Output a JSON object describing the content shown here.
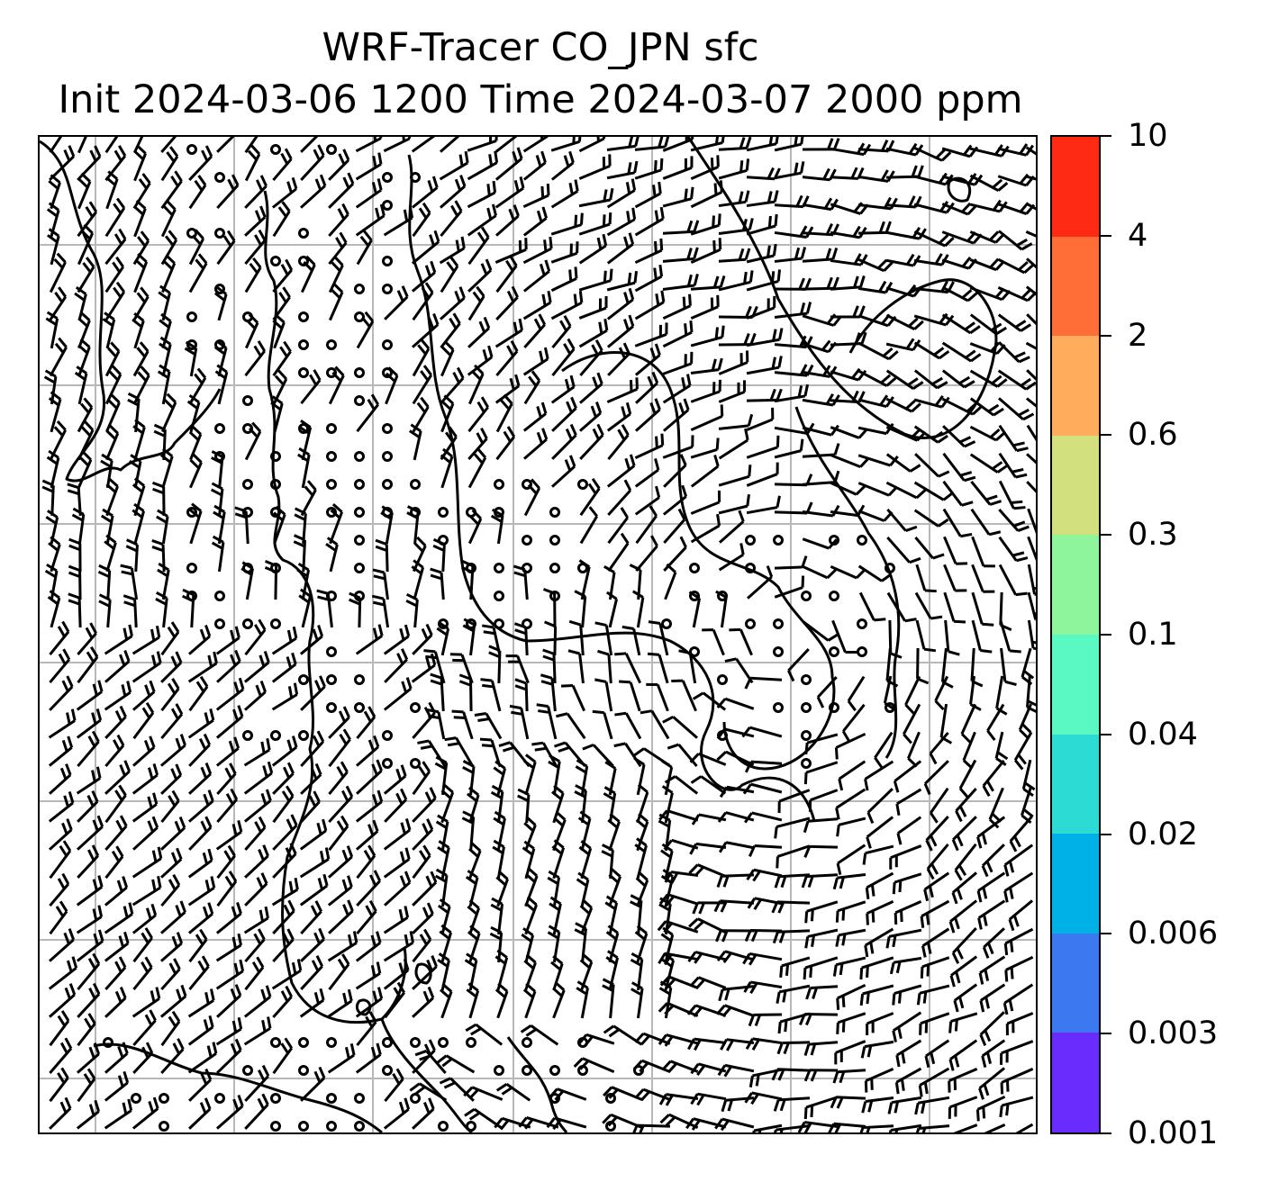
{
  "title": {
    "line1": "WRF-Tracer CO_JPN sfc",
    "line2": "Init 2024-03-06 1200 Time 2024-03-07 2000 ppm"
  },
  "colorbar": {
    "labels": [
      "10",
      "4",
      "2",
      "0.6",
      "0.3",
      "0.1",
      "0.04",
      "0.02",
      "0.006",
      "0.003",
      "0.001"
    ],
    "colors_top_to_bottom": [
      "#ff2a14",
      "#ff6e36",
      "#ffad5c",
      "#d2e17e",
      "#8ff59d",
      "#5af8c2",
      "#2cdbd4",
      "#00b1e8",
      "#3c79f0",
      "#6a2cfd"
    ]
  },
  "map": {
    "gridline_color": "#b8b8b8",
    "coastline_color": "#000000",
    "wind_symbol": "wind-barb-icon",
    "calm_symbol": "calm-circle-icon"
  }
}
